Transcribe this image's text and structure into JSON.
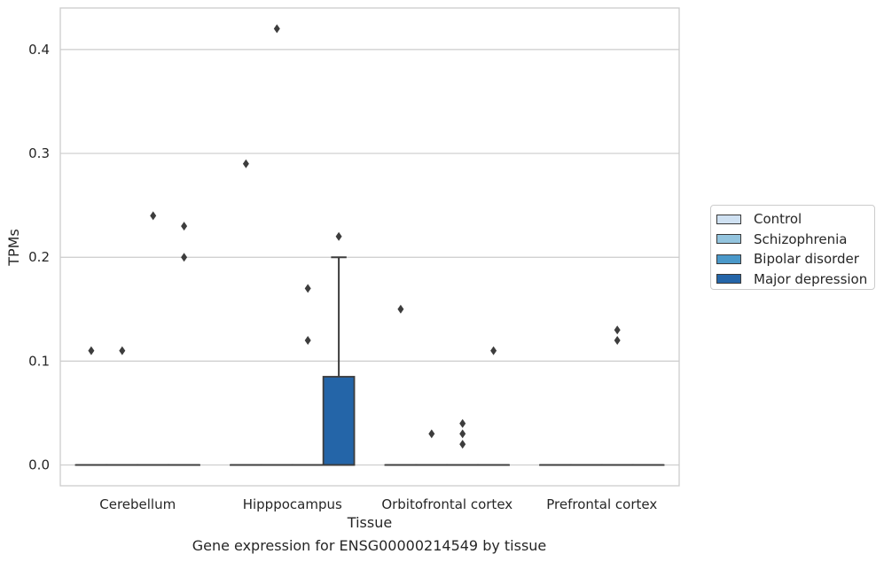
{
  "chart_data": {
    "type": "box",
    "title": "",
    "xlabel": "Tissue",
    "ylabel": "TPMs",
    "caption": "Gene expression for ENSG00000214549 by tissue",
    "ylim": [
      -0.02,
      0.44
    ],
    "yticks": [
      "0.0",
      "0.1",
      "0.2",
      "0.3",
      "0.4"
    ],
    "ytick_values": [
      0.0,
      0.1,
      0.2,
      0.3,
      0.4
    ],
    "categories": [
      "Cerebellum",
      "Hipppocampus",
      "Orbitofrontal cortex",
      "Prefrontal cortex"
    ],
    "grid": "horizontal",
    "legend_position": "right",
    "series": [
      {
        "name": "Control",
        "color": "#cfe1f2"
      },
      {
        "name": "Schizophrenia",
        "color": "#93c4de"
      },
      {
        "name": "Bipolar disorder",
        "color": "#4a98c9"
      },
      {
        "name": "Major depression",
        "color": "#2465a8"
      }
    ],
    "boxes": [
      {
        "category": 0,
        "series": 0,
        "q1": 0.0,
        "median": 0.0,
        "q3": 0.0,
        "whisker_low": 0.0,
        "whisker_high": 0.0,
        "outliers": [
          0.11
        ]
      },
      {
        "category": 0,
        "series": 1,
        "q1": 0.0,
        "median": 0.0,
        "q3": 0.0,
        "whisker_low": 0.0,
        "whisker_high": 0.0,
        "outliers": [
          0.11
        ]
      },
      {
        "category": 0,
        "series": 2,
        "q1": 0.0,
        "median": 0.0,
        "q3": 0.0,
        "whisker_low": 0.0,
        "whisker_high": 0.0,
        "outliers": [
          0.24
        ]
      },
      {
        "category": 0,
        "series": 3,
        "q1": 0.0,
        "median": 0.0,
        "q3": 0.0,
        "whisker_low": 0.0,
        "whisker_high": 0.0,
        "outliers": [
          0.23,
          0.2
        ]
      },
      {
        "category": 1,
        "series": 0,
        "q1": 0.0,
        "median": 0.0,
        "q3": 0.0,
        "whisker_low": 0.0,
        "whisker_high": 0.0,
        "outliers": [
          0.29
        ]
      },
      {
        "category": 1,
        "series": 1,
        "q1": 0.0,
        "median": 0.0,
        "q3": 0.0,
        "whisker_low": 0.0,
        "whisker_high": 0.0,
        "outliers": [
          0.42
        ]
      },
      {
        "category": 1,
        "series": 2,
        "q1": 0.0,
        "median": 0.0,
        "q3": 0.0,
        "whisker_low": 0.0,
        "whisker_high": 0.0,
        "outliers": [
          0.17,
          0.12
        ]
      },
      {
        "category": 1,
        "series": 3,
        "q1": 0.0,
        "median": 0.0,
        "q3": 0.085,
        "whisker_low": 0.0,
        "whisker_high": 0.2,
        "outliers": [
          0.22
        ]
      },
      {
        "category": 2,
        "series": 0,
        "q1": 0.0,
        "median": 0.0,
        "q3": 0.0,
        "whisker_low": 0.0,
        "whisker_high": 0.0,
        "outliers": [
          0.15
        ]
      },
      {
        "category": 2,
        "series": 1,
        "q1": 0.0,
        "median": 0.0,
        "q3": 0.0,
        "whisker_low": 0.0,
        "whisker_high": 0.0,
        "outliers": [
          0.03
        ]
      },
      {
        "category": 2,
        "series": 2,
        "q1": 0.0,
        "median": 0.0,
        "q3": 0.0,
        "whisker_low": 0.0,
        "whisker_high": 0.0,
        "outliers": [
          0.04,
          0.03,
          0.02
        ]
      },
      {
        "category": 2,
        "series": 3,
        "q1": 0.0,
        "median": 0.0,
        "q3": 0.0,
        "whisker_low": 0.0,
        "whisker_high": 0.0,
        "outliers": [
          0.11
        ]
      },
      {
        "category": 3,
        "series": 0,
        "q1": 0.0,
        "median": 0.0,
        "q3": 0.0,
        "whisker_low": 0.0,
        "whisker_high": 0.0,
        "outliers": []
      },
      {
        "category": 3,
        "series": 1,
        "q1": 0.0,
        "median": 0.0,
        "q3": 0.0,
        "whisker_low": 0.0,
        "whisker_high": 0.0,
        "outliers": []
      },
      {
        "category": 3,
        "series": 2,
        "q1": 0.0,
        "median": 0.0,
        "q3": 0.0,
        "whisker_low": 0.0,
        "whisker_high": 0.0,
        "outliers": [
          0.13,
          0.12
        ]
      },
      {
        "category": 3,
        "series": 3,
        "q1": 0.0,
        "median": 0.0,
        "q3": 0.0,
        "whisker_low": 0.0,
        "whisker_high": 0.0,
        "outliers": []
      }
    ]
  }
}
